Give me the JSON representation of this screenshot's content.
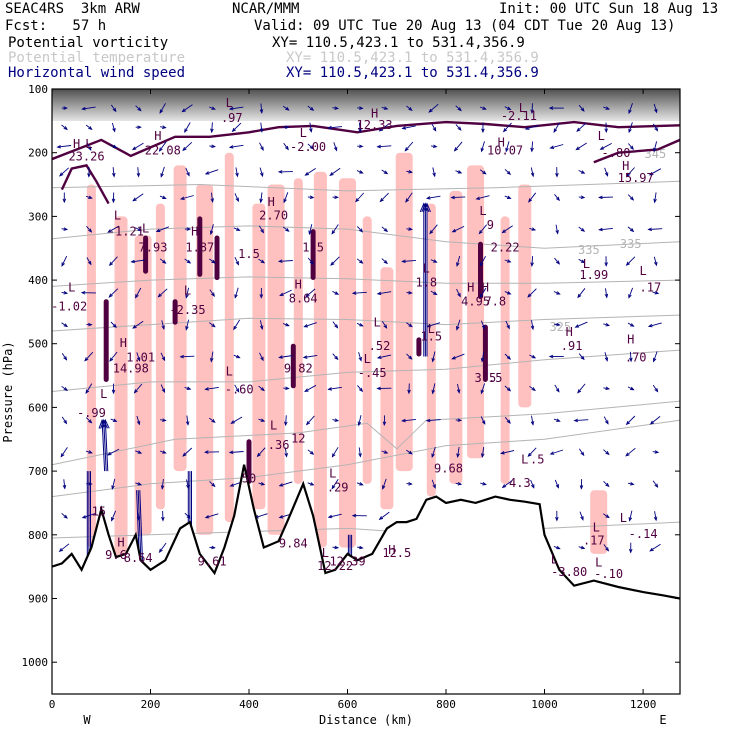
{
  "header": {
    "model": "SEAC4RS  3km ARW",
    "center": "NCAR/MMM",
    "init": "Init: 00 UTC Sun 18 Aug 13",
    "fcst": "Fcst:   57 h",
    "valid": "Valid: 09 UTC Tue 20 Aug 13 (04 CDT Tue 20 Aug 13)",
    "fields": [
      {
        "name": "Potential vorticity",
        "xy": "XY= 110.5,423.1 to 531.4,356.9",
        "color": "#000000"
      },
      {
        "name": "Potential temperature",
        "xy": "XY= 110.5,423.1 to 531.4,356.9",
        "color": "#c8c8c8"
      },
      {
        "name": "Horizontal wind speed",
        "xy": "XY= 110.5,423.1 to 531.4,356.9",
        "color": "#000080"
      }
    ]
  },
  "chart_data": {
    "type": "cross-section",
    "xlabel": "Distance (km)",
    "ylabel": "Pressure (hPa)",
    "xlim": [
      0,
      1275
    ],
    "ylim": [
      1050,
      100
    ],
    "x_ticks": [
      "0",
      "200",
      "400",
      "600",
      "800",
      "1000",
      "1200"
    ],
    "y_ticks": [
      "100",
      "200",
      "300",
      "400",
      "500",
      "600",
      "700",
      "800",
      "900",
      "1000"
    ],
    "x_end_labels": {
      "left": "W",
      "right": "E"
    },
    "colors": {
      "pv_fill": "#ffc0c0",
      "pv_contour": "#500040",
      "theta": "#b4b4b4",
      "wind": "#000080",
      "terrain": "#000000"
    },
    "terrain_profile": [
      [
        0,
        850
      ],
      [
        20,
        845
      ],
      [
        40,
        830
      ],
      [
        60,
        855
      ],
      [
        80,
        820
      ],
      [
        100,
        760
      ],
      [
        115,
        800
      ],
      [
        130,
        835
      ],
      [
        150,
        830
      ],
      [
        170,
        800
      ],
      [
        180,
        840
      ],
      [
        200,
        855
      ],
      [
        230,
        840
      ],
      [
        260,
        790
      ],
      [
        280,
        780
      ],
      [
        300,
        830
      ],
      [
        330,
        860
      ],
      [
        350,
        820
      ],
      [
        370,
        770
      ],
      [
        390,
        690
      ],
      [
        410,
        760
      ],
      [
        430,
        820
      ],
      [
        460,
        810
      ],
      [
        480,
        775
      ],
      [
        510,
        720
      ],
      [
        530,
        770
      ],
      [
        555,
        860
      ],
      [
        575,
        855
      ],
      [
        600,
        830
      ],
      [
        620,
        840
      ],
      [
        650,
        830
      ],
      [
        680,
        790
      ],
      [
        700,
        780
      ],
      [
        720,
        780
      ],
      [
        740,
        775
      ],
      [
        760,
        745
      ],
      [
        780,
        740
      ],
      [
        800,
        750
      ],
      [
        830,
        745
      ],
      [
        860,
        750
      ],
      [
        880,
        745
      ],
      [
        900,
        740
      ],
      [
        930,
        745
      ],
      [
        960,
        748
      ],
      [
        990,
        752
      ],
      [
        1000,
        800
      ],
      [
        1030,
        855
      ],
      [
        1060,
        880
      ],
      [
        1100,
        872
      ],
      [
        1150,
        882
      ],
      [
        1200,
        890
      ],
      [
        1240,
        895
      ],
      [
        1275,
        900
      ]
    ],
    "theta_isentropes": [
      {
        "label": "",
        "points": [
          [
            0,
            805
          ],
          [
            200,
            800
          ],
          [
            400,
            795
          ],
          [
            600,
            790
          ],
          [
            800,
            800
          ],
          [
            1000,
            790
          ],
          [
            1275,
            780
          ]
        ]
      },
      {
        "label": "",
        "points": [
          [
            0,
            740
          ],
          [
            200,
            720
          ],
          [
            400,
            710
          ],
          [
            600,
            690
          ],
          [
            800,
            660
          ],
          [
            1000,
            650
          ],
          [
            1275,
            620
          ]
        ]
      },
      {
        "label": "",
        "points": [
          [
            0,
            690
          ],
          [
            250,
            650
          ],
          [
            500,
            640
          ],
          [
            640,
            625
          ],
          [
            700,
            665
          ],
          [
            760,
            620
          ],
          [
            1000,
            610
          ],
          [
            1275,
            590
          ]
        ]
      },
      {
        "label": "",
        "points": [
          [
            0,
            575
          ],
          [
            200,
            560
          ],
          [
            400,
            560
          ],
          [
            600,
            545
          ],
          [
            800,
            540
          ],
          [
            1000,
            525
          ],
          [
            1275,
            510
          ]
        ]
      },
      {
        "label": "325",
        "points": [
          [
            0,
            480
          ],
          [
            200,
            470
          ],
          [
            400,
            460
          ],
          [
            600,
            462
          ],
          [
            800,
            470
          ],
          [
            1000,
            462
          ],
          [
            1275,
            455
          ]
        ]
      },
      {
        "label": "",
        "points": [
          [
            0,
            410
          ],
          [
            200,
            400
          ],
          [
            400,
            395
          ],
          [
            600,
            398
          ],
          [
            800,
            405
          ],
          [
            1000,
            405
          ],
          [
            1275,
            400
          ]
        ]
      },
      {
        "label": "335",
        "points": [
          [
            0,
            335
          ],
          [
            200,
            320
          ],
          [
            400,
            315
          ],
          [
            600,
            320
          ],
          [
            800,
            340
          ],
          [
            1000,
            350
          ],
          [
            1275,
            340
          ]
        ]
      },
      {
        "label": "345",
        "points": [
          [
            0,
            255
          ],
          [
            300,
            250
          ],
          [
            600,
            260
          ],
          [
            900,
            255
          ],
          [
            1275,
            245
          ]
        ]
      }
    ],
    "theta_label_points": [
      {
        "text": "345",
        "x": 1225,
        "y": 208
      },
      {
        "text": "335",
        "x": 1175,
        "y": 350
      },
      {
        "text": "335",
        "x": 1090,
        "y": 359
      },
      {
        "text": "325",
        "x": 1032,
        "y": 480
      }
    ],
    "pv_contour_paths": [
      [
        [
          0,
          210
        ],
        [
          100,
          180
        ],
        [
          160,
          205
        ],
        [
          250,
          175
        ],
        [
          320,
          175
        ],
        [
          400,
          168
        ],
        [
          460,
          160
        ],
        [
          530,
          158
        ],
        [
          620,
          168
        ],
        [
          700,
          158
        ],
        [
          800,
          152
        ],
        [
          880,
          155
        ],
        [
          960,
          160
        ],
        [
          1060,
          152
        ],
        [
          1150,
          160
        ],
        [
          1275,
          157
        ]
      ],
      [
        [
          20,
          258
        ],
        [
          40,
          225
        ],
        [
          70,
          220
        ],
        [
          90,
          245
        ],
        [
          115,
          280
        ]
      ],
      [
        [
          1100,
          215
        ],
        [
          1150,
          200
        ],
        [
          1230,
          195
        ],
        [
          1275,
          180
        ]
      ]
    ],
    "pv_towers": [
      {
        "x": 110,
        "top": 430,
        "bottom": 560
      },
      {
        "x": 190,
        "top": 330,
        "bottom": 390
      },
      {
        "x": 250,
        "top": 430,
        "bottom": 470
      },
      {
        "x": 300,
        "top": 300,
        "bottom": 395
      },
      {
        "x": 335,
        "top": 330,
        "bottom": 400
      },
      {
        "x": 400,
        "top": 650,
        "bottom": 720
      },
      {
        "x": 490,
        "top": 500,
        "bottom": 570
      },
      {
        "x": 530,
        "top": 320,
        "bottom": 400
      },
      {
        "x": 745,
        "top": 490,
        "bottom": 520
      },
      {
        "x": 870,
        "top": 340,
        "bottom": 430
      },
      {
        "x": 880,
        "top": 470,
        "bottom": 560
      }
    ],
    "pv_fill_columns": [
      {
        "x": 80,
        "top": 250,
        "bottom": 820
      },
      {
        "x": 140,
        "top": 300,
        "bottom": 840
      },
      {
        "x": 185,
        "top": 330,
        "bottom": 800
      },
      {
        "x": 220,
        "top": 280,
        "bottom": 760
      },
      {
        "x": 260,
        "top": 220,
        "bottom": 700
      },
      {
        "x": 310,
        "top": 250,
        "bottom": 800
      },
      {
        "x": 360,
        "top": 200,
        "bottom": 780
      },
      {
        "x": 420,
        "top": 280,
        "bottom": 760
      },
      {
        "x": 455,
        "top": 250,
        "bottom": 800
      },
      {
        "x": 500,
        "top": 240,
        "bottom": 720
      },
      {
        "x": 545,
        "top": 230,
        "bottom": 820
      },
      {
        "x": 600,
        "top": 240,
        "bottom": 820
      },
      {
        "x": 640,
        "top": 300,
        "bottom": 720
      },
      {
        "x": 680,
        "top": 380,
        "bottom": 760
      },
      {
        "x": 715,
        "top": 200,
        "bottom": 700
      },
      {
        "x": 770,
        "top": 280,
        "bottom": 740
      },
      {
        "x": 820,
        "top": 260,
        "bottom": 720
      },
      {
        "x": 860,
        "top": 220,
        "bottom": 680
      },
      {
        "x": 920,
        "top": 300,
        "bottom": 720
      },
      {
        "x": 960,
        "top": 250,
        "bottom": 600
      },
      {
        "x": 1110,
        "top": 730,
        "bottom": 830
      }
    ],
    "extrema_labels": [
      {
        "text": "L",
        "x": 360,
        "y": 128
      },
      {
        "text": ".97",
        "x": 365,
        "y": 152
      },
      {
        "text": "H",
        "x": 655,
        "y": 145
      },
      {
        "text": "12.33",
        "x": 655,
        "y": 163
      },
      {
        "text": "L",
        "x": 955,
        "y": 136
      },
      {
        "text": "-2.11",
        "x": 948,
        "y": 149
      },
      {
        "text": "H",
        "x": 50,
        "y": 193
      },
      {
        "text": "L",
        "x": 75,
        "y": 193
      },
      {
        "text": "23.26",
        "x": 70,
        "y": 212
      },
      {
        "text": "H",
        "x": 215,
        "y": 180
      },
      {
        "text": "22.08",
        "x": 225,
        "y": 203
      },
      {
        "text": "L",
        "x": 510,
        "y": 175
      },
      {
        "text": "-2.00",
        "x": 520,
        "y": 197
      },
      {
        "text": "H",
        "x": 912,
        "y": 190
      },
      {
        "text": "10.07",
        "x": 920,
        "y": 203
      },
      {
        "text": "L",
        "x": 1115,
        "y": 180
      },
      {
        "text": "-.80",
        "x": 1145,
        "y": 207
      },
      {
        "text": "H",
        "x": 1165,
        "y": 227
      },
      {
        "text": "15.97",
        "x": 1185,
        "y": 246
      },
      {
        "text": "H",
        "x": 445,
        "y": 284
      },
      {
        "text": "2.70",
        "x": 450,
        "y": 305
      },
      {
        "text": "L",
        "x": 133,
        "y": 305
      },
      {
        "text": "-1.21",
        "x": 150,
        "y": 330
      },
      {
        "text": "L",
        "x": 190,
        "y": 325
      },
      {
        "text": "7.93",
        "x": 205,
        "y": 355
      },
      {
        "text": "H",
        "x": 290,
        "y": 330
      },
      {
        "text": "1.87",
        "x": 300,
        "y": 355
      },
      {
        "text": "1.5",
        "x": 400,
        "y": 365
      },
      {
        "text": "1.5",
        "x": 530,
        "y": 355
      },
      {
        "text": "L",
        "x": 875,
        "y": 298
      },
      {
        "text": "9",
        "x": 890,
        "y": 320
      },
      {
        "text": "2.22",
        "x": 920,
        "y": 355
      },
      {
        "text": "L",
        "x": 760,
        "y": 388
      },
      {
        "text": "1.8",
        "x": 760,
        "y": 410
      },
      {
        "text": "L",
        "x": 1085,
        "y": 381
      },
      {
        "text": "1.99",
        "x": 1100,
        "y": 398
      },
      {
        "text": "L",
        "x": 1200,
        "y": 392
      },
      {
        "text": ".17",
        "x": 1215,
        "y": 418
      },
      {
        "text": "L",
        "x": 40,
        "y": 418
      },
      {
        "text": "-1.02",
        "x": 35,
        "y": 448
      },
      {
        "text": "L",
        "x": 275,
        "y": 423
      },
      {
        "text": "-2.35",
        "x": 275,
        "y": 453
      },
      {
        "text": "H",
        "x": 500,
        "y": 413
      },
      {
        "text": "8.64",
        "x": 510,
        "y": 435
      },
      {
        "text": "H",
        "x": 850,
        "y": 418
      },
      {
        "text": "4.95",
        "x": 860,
        "y": 440
      },
      {
        "text": "H",
        "x": 880,
        "y": 418
      },
      {
        "text": "7.8",
        "x": 900,
        "y": 440
      },
      {
        "text": "L",
        "x": 660,
        "y": 473
      },
      {
        "text": ".52",
        "x": 665,
        "y": 510
      },
      {
        "text": "L",
        "x": 770,
        "y": 483
      },
      {
        "text": "1.5",
        "x": 770,
        "y": 495
      },
      {
        "text": "H",
        "x": 1050,
        "y": 488
      },
      {
        "text": ".91",
        "x": 1055,
        "y": 510
      },
      {
        "text": "H",
        "x": 1175,
        "y": 500
      },
      {
        "text": ".70",
        "x": 1185,
        "y": 528
      },
      {
        "text": "H",
        "x": 145,
        "y": 505
      },
      {
        "text": "1.01",
        "x": 180,
        "y": 528
      },
      {
        "text": "14.98",
        "x": 160,
        "y": 545
      },
      {
        "text": "L",
        "x": 640,
        "y": 530
      },
      {
        "text": "-.45",
        "x": 650,
        "y": 552
      },
      {
        "text": "9.82",
        "x": 500,
        "y": 545
      },
      {
        "text": "L",
        "x": 360,
        "y": 550
      },
      {
        "text": "-.60",
        "x": 380,
        "y": 578
      },
      {
        "text": "3.5",
        "x": 880,
        "y": 560
      },
      {
        "text": ".5",
        "x": 900,
        "y": 560
      },
      {
        "text": "L",
        "x": 105,
        "y": 585
      },
      {
        "text": "-.99",
        "x": 80,
        "y": 615
      },
      {
        "text": "L",
        "x": 450,
        "y": 635
      },
      {
        "text": ".36",
        "x": 460,
        "y": 665
      },
      {
        "text": "12",
        "x": 500,
        "y": 655
      },
      {
        "text": "9.68",
        "x": 805,
        "y": 702
      },
      {
        "text": "L",
        "x": 960,
        "y": 688
      },
      {
        "text": ".5",
        "x": 985,
        "y": 688
      },
      {
        "text": "4.3",
        "x": 950,
        "y": 725
      },
      {
        "text": "50",
        "x": 400,
        "y": 718
      },
      {
        "text": "L",
        "x": 570,
        "y": 710
      },
      {
        "text": ".29",
        "x": 580,
        "y": 732
      },
      {
        "text": "L",
        "x": 1105,
        "y": 795
      },
      {
        "text": ".17",
        "x": 1100,
        "y": 815
      },
      {
        "text": "L",
        "x": 1160,
        "y": 780
      },
      {
        "text": "-.14",
        "x": 1200,
        "y": 805
      },
      {
        "text": "15",
        "x": 95,
        "y": 770
      },
      {
        "text": "H",
        "x": 140,
        "y": 818
      },
      {
        "text": "9.6",
        "x": 130,
        "y": 838
      },
      {
        "text": "8.64",
        "x": 175,
        "y": 843
      },
      {
        "text": "9.61",
        "x": 325,
        "y": 848
      },
      {
        "text": "9.84",
        "x": 490,
        "y": 820
      },
      {
        "text": "L",
        "x": 555,
        "y": 835
      },
      {
        "text": "12.22",
        "x": 575,
        "y": 855
      },
      {
        "text": "12.39",
        "x": 600,
        "y": 848
      },
      {
        "text": "H",
        "x": 690,
        "y": 830
      },
      {
        "text": "12.5",
        "x": 700,
        "y": 835
      },
      {
        "text": "L",
        "x": 1020,
        "y": 845
      },
      {
        "text": "-3.80",
        "x": 1050,
        "y": 865
      },
      {
        "text": "L",
        "x": 1110,
        "y": 850
      },
      {
        "text": "-.10",
        "x": 1130,
        "y": 868
      }
    ],
    "wind_vectors": [
      {
        "x": 75,
        "p": 700,
        "dx": 0,
        "dp": 210
      },
      {
        "x": 110,
        "p": 700,
        "dx": -5,
        "dp": -80
      },
      {
        "x": 175,
        "p": 730,
        "dx": 10,
        "dp": 200
      },
      {
        "x": 280,
        "p": 700,
        "dx": 0,
        "dp": 175
      },
      {
        "x": 505,
        "p": 760,
        "dx": 5,
        "dp": 160
      },
      {
        "x": 605,
        "p": 800,
        "dx": 0,
        "dp": 95
      },
      {
        "x": 758,
        "p": 520,
        "dx": 0,
        "dp": -240
      }
    ],
    "vector_grid": {
      "x_step": 50,
      "p_levels": [
        130,
        160,
        190,
        230,
        270,
        320,
        370,
        420,
        470,
        520,
        570,
        620,
        670,
        720,
        770,
        820
      ]
    }
  }
}
